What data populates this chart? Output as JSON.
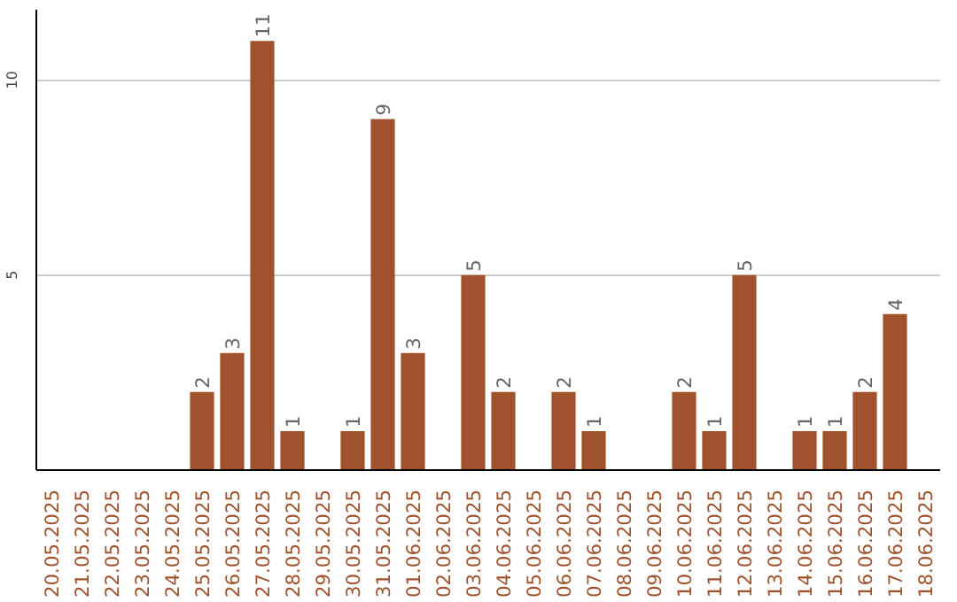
{
  "chart_data": {
    "type": "bar",
    "categories": [
      "20.05.2025",
      "21.05.2025",
      "22.05.2025",
      "23.05.2025",
      "24.05.2025",
      "25.05.2025",
      "26.05.2025",
      "27.05.2025",
      "28.05.2025",
      "29.05.2025",
      "30.05.2025",
      "31.05.2025",
      "01.06.2025",
      "02.06.2025",
      "03.06.2025",
      "04.06.2025",
      "05.06.2025",
      "06.06.2025",
      "07.06.2025",
      "08.06.2025",
      "09.06.2025",
      "10.06.2025",
      "11.06.2025",
      "12.06.2025",
      "13.06.2025",
      "14.06.2025",
      "15.06.2025",
      "16.06.2025",
      "17.06.2025",
      "18.06.2025"
    ],
    "values": [
      0,
      0,
      0,
      0,
      0,
      2,
      3,
      11,
      1,
      0,
      1,
      9,
      3,
      0,
      5,
      2,
      0,
      2,
      1,
      0,
      0,
      2,
      1,
      5,
      0,
      1,
      1,
      2,
      4,
      0
    ],
    "value_labels": [
      null,
      null,
      null,
      null,
      null,
      "2",
      "3",
      "11",
      "1",
      null,
      "1",
      "9",
      "3",
      null,
      "5",
      "2",
      null,
      "2",
      "1",
      null,
      null,
      "2",
      "1",
      "5",
      null,
      "1",
      "1",
      "2",
      "4",
      null
    ],
    "color": "#a0522d",
    "ylim": [
      0,
      11.8
    ],
    "yticks": [
      5,
      10
    ],
    "grid": "y"
  }
}
